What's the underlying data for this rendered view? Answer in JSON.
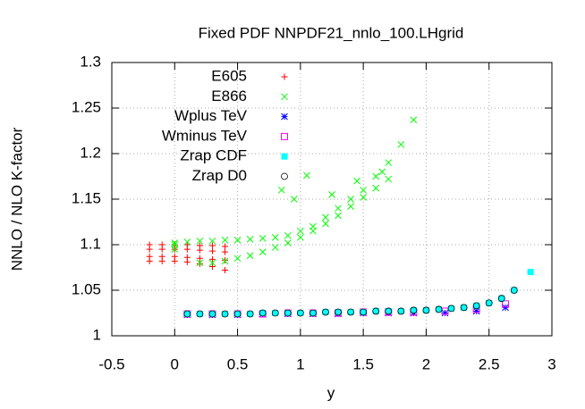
{
  "chart_data": {
    "type": "scatter",
    "title": "Fixed PDF NNPDF21_nnlo_100.LHgrid",
    "xlabel": "y",
    "ylabel": "NNLO / NLO K-factor",
    "xlim": [
      -0.5,
      3
    ],
    "ylim": [
      1,
      1.3
    ],
    "xticks": [
      -0.5,
      0,
      0.5,
      1,
      1.5,
      2,
      2.5,
      3
    ],
    "yticks": [
      1,
      1.05,
      1.1,
      1.15,
      1.2,
      1.25,
      1.3
    ],
    "grid": true,
    "legend": "top-left",
    "series": [
      {
        "name": "E605",
        "color": "#ff0000",
        "marker": "plus",
        "x": [
          -0.2,
          -0.2,
          -0.2,
          -0.2,
          -0.1,
          -0.1,
          -0.1,
          -0.1,
          0,
          0,
          0,
          0,
          0.1,
          0.1,
          0.1,
          0.1,
          0.2,
          0.2,
          0.2,
          0.2,
          0.3,
          0.3,
          0.3,
          0.3,
          0.4,
          0.4,
          0.4,
          0.4
        ],
        "values": [
          1.1,
          1.095,
          1.087,
          1.082,
          1.1,
          1.095,
          1.087,
          1.082,
          1.1,
          1.095,
          1.087,
          1.082,
          1.1,
          1.095,
          1.086,
          1.081,
          1.099,
          1.094,
          1.085,
          1.079,
          1.099,
          1.093,
          1.084,
          1.076,
          1.098,
          1.092,
          1.083,
          1.072
        ]
      },
      {
        "name": "E866",
        "color": "#00ff00",
        "marker": "cross",
        "x": [
          0,
          0.1,
          0.2,
          0.3,
          0.4,
          0.5,
          0.6,
          0.7,
          0.8,
          0.9,
          1,
          1.1,
          1.2,
          1.3,
          1.4,
          1.5,
          1.6,
          1.7,
          1.8,
          1.9,
          0,
          0,
          0.2,
          0.3,
          0.4,
          0.5,
          0.6,
          0.7,
          0.8,
          0.9,
          1,
          1.1,
          1.2,
          1.3,
          1.4,
          1.5,
          1.6,
          1.7,
          0.95,
          1.05,
          0.85,
          1.25,
          1.45,
          1.65
        ],
        "values": [
          1.102,
          1.103,
          1.104,
          1.104,
          1.105,
          1.105,
          1.106,
          1.107,
          1.108,
          1.11,
          1.115,
          1.12,
          1.13,
          1.14,
          1.15,
          1.16,
          1.175,
          1.19,
          1.21,
          1.237,
          1.1,
          1.095,
          1.08,
          1.08,
          1.082,
          1.085,
          1.088,
          1.092,
          1.097,
          1.102,
          1.108,
          1.115,
          1.123,
          1.132,
          1.142,
          1.152,
          1.162,
          1.172,
          1.15,
          1.176,
          1.16,
          1.155,
          1.17,
          1.18
        ]
      },
      {
        "name": "Wplus TeV",
        "color": "#0000ff",
        "marker": "star",
        "x": [
          0.1,
          0.3,
          0.5,
          0.7,
          0.9,
          1.1,
          1.3,
          1.5,
          1.7,
          1.9,
          2.15,
          2.4,
          2.63
        ],
        "values": [
          1.023,
          1.023,
          1.023,
          1.024,
          1.024,
          1.024,
          1.024,
          1.025,
          1.025,
          1.025,
          1.025,
          1.027,
          1.031
        ]
      },
      {
        "name": "Wminus TeV",
        "color": "#ff00ff",
        "marker": "square",
        "x": [
          0.1,
          0.3,
          0.5,
          0.7,
          0.9,
          1.1,
          1.3,
          1.5,
          1.7,
          1.9,
          2.15,
          2.4,
          2.63
        ],
        "values": [
          1.024,
          1.024,
          1.024,
          1.024,
          1.025,
          1.025,
          1.025,
          1.026,
          1.026,
          1.026,
          1.027,
          1.029,
          1.035
        ]
      },
      {
        "name": "Zrap CDF",
        "color": "#00ffff",
        "marker": "filled-square",
        "x": [
          0.1,
          0.2,
          0.3,
          0.4,
          0.5,
          0.6,
          0.7,
          0.8,
          0.9,
          1,
          1.1,
          1.2,
          1.3,
          1.4,
          1.5,
          1.6,
          1.7,
          1.8,
          1.9,
          2,
          2.1,
          2.2,
          2.3,
          2.4,
          2.5,
          2.6,
          2.7,
          2.83
        ],
        "values": [
          1.024,
          1.024,
          1.024,
          1.024,
          1.024,
          1.024,
          1.025,
          1.025,
          1.025,
          1.025,
          1.025,
          1.026,
          1.026,
          1.026,
          1.026,
          1.027,
          1.027,
          1.027,
          1.028,
          1.028,
          1.029,
          1.03,
          1.031,
          1.033,
          1.036,
          1.041,
          1.05,
          1.07
        ]
      },
      {
        "name": "Zrap D0",
        "color": "#000000",
        "marker": "circle",
        "x": [
          0.1,
          0.2,
          0.3,
          0.4,
          0.5,
          0.6,
          0.7,
          0.8,
          0.9,
          1,
          1.1,
          1.2,
          1.3,
          1.4,
          1.5,
          1.6,
          1.7,
          1.8,
          1.9,
          2,
          2.1,
          2.2,
          2.3,
          2.4,
          2.5,
          2.6,
          2.7
        ],
        "values": [
          1.024,
          1.024,
          1.024,
          1.024,
          1.024,
          1.024,
          1.025,
          1.025,
          1.025,
          1.025,
          1.025,
          1.026,
          1.026,
          1.026,
          1.026,
          1.027,
          1.027,
          1.027,
          1.028,
          1.028,
          1.029,
          1.03,
          1.031,
          1.033,
          1.036,
          1.041,
          1.05
        ]
      }
    ]
  }
}
